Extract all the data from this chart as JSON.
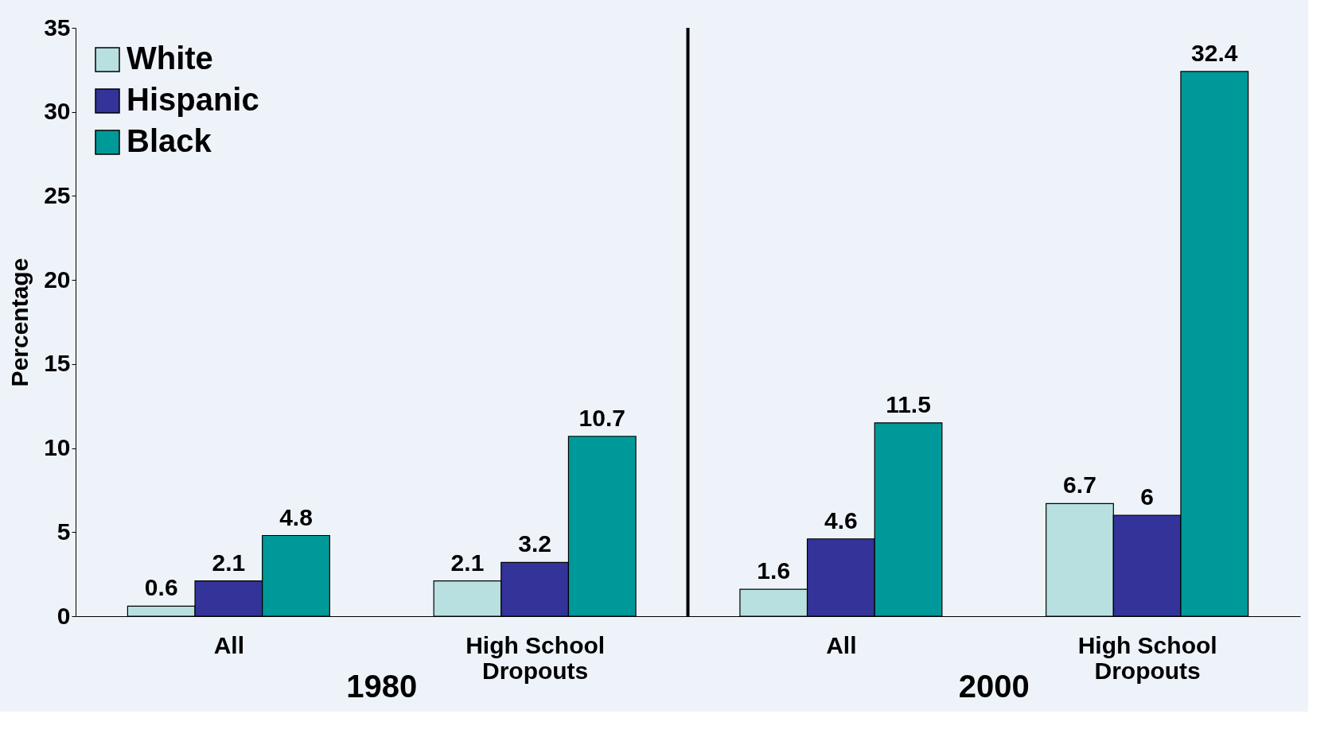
{
  "chart_data": {
    "type": "bar",
    "ylabel": "Percentage",
    "categories": [
      "All",
      "High School Dropouts",
      "All",
      "High School Dropouts"
    ],
    "series": [
      {
        "name": "White",
        "color": "#b8e0e0",
        "values": [
          0.6,
          2.1,
          1.6,
          6.7
        ]
      },
      {
        "name": "Hispanic",
        "color": "#333399",
        "values": [
          2.1,
          3.2,
          4.6,
          6
        ]
      },
      {
        "name": "Black",
        "color": "#009999",
        "values": [
          4.8,
          10.7,
          11.5,
          32.4
        ]
      }
    ],
    "ylim": [
      0,
      35
    ],
    "yticks": [
      0,
      5,
      10,
      15,
      20,
      25,
      30,
      35
    ],
    "data_labels": true,
    "grid": false,
    "legend": "top left",
    "annotations": [
      "1980",
      "2000"
    ]
  }
}
